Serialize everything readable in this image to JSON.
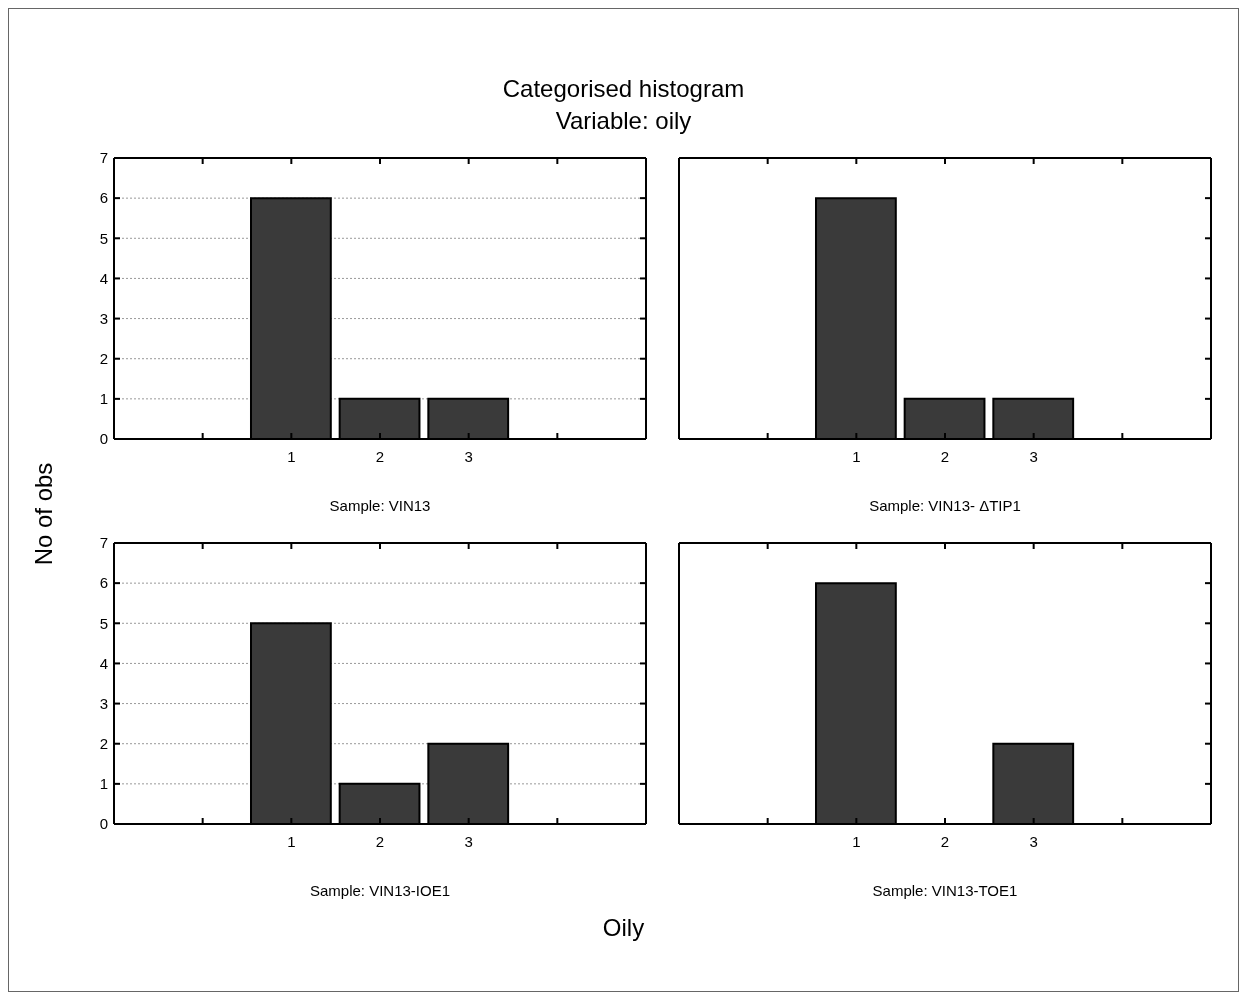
{
  "chart_data": [
    {
      "type": "histogram",
      "title": "Categorised histogram",
      "subtitle": "Variable: oily",
      "ylabel": "No of obs",
      "xlabel": "Sample: VIN13",
      "annotations": [
        "Oily"
      ],
      "bins": [
        0.5,
        1.5,
        2.5,
        3.5
      ],
      "values": [
        6,
        1,
        1
      ],
      "color": "#3a3a3a",
      "xlim": [
        -1,
        5
      ],
      "xticks": [
        {
          "value": -1,
          "label": null
        },
        {
          "value": 0,
          "label": null
        },
        1,
        2,
        3,
        {
          "value": 4,
          "label": null
        },
        {
          "value": 5,
          "label": null
        }
      ],
      "ylim": [
        0,
        7
      ],
      "yticks": [
        0,
        1,
        2,
        3,
        4,
        5,
        6,
        7
      ],
      "grid": "y"
    },
    {
      "type": "histogram",
      "xlabel": "Sample: VIN13- ΔTIP1",
      "bins": [
        0.5,
        1.5,
        2.5,
        3.5
      ],
      "values": [
        6,
        1,
        1
      ],
      "color": "#3a3a3a",
      "xlim": [
        -1,
        5
      ],
      "xticks": [
        {
          "value": -1,
          "label": null
        },
        {
          "value": 0,
          "label": null
        },
        1,
        2,
        3,
        {
          "value": 4,
          "label": null
        },
        {
          "value": 5,
          "label": null
        }
      ],
      "ylim": [
        0,
        7
      ],
      "yticks": [
        0,
        1,
        2,
        3,
        4,
        5,
        6,
        7
      ],
      "grid": "y",
      "tick_labels": "x"
    },
    {
      "type": "histogram",
      "xlabel": "Sample: VIN13-IOE1",
      "bins": [
        0.5,
        1.5,
        2.5,
        3.5
      ],
      "values": [
        5,
        1,
        2
      ],
      "color": "#3a3a3a",
      "xlim": [
        -1,
        5
      ],
      "xticks": [
        {
          "value": -1,
          "label": null
        },
        {
          "value": 0,
          "label": null
        },
        1,
        2,
        3,
        {
          "value": 4,
          "label": null
        },
        {
          "value": 5,
          "label": null
        }
      ],
      "ylim": [
        0,
        7
      ],
      "yticks": [
        0,
        1,
        2,
        3,
        4,
        5,
        6,
        7
      ],
      "grid": "y"
    },
    {
      "type": "histogram",
      "xlabel": "Sample: VIN13-TOE1",
      "bins": [
        0.5,
        1.5,
        2.5,
        3.5
      ],
      "values": [
        6,
        0,
        2
      ],
      "color": "#3a3a3a",
      "xlim": [
        -1,
        5
      ],
      "xticks": [
        {
          "value": -1,
          "label": null
        },
        {
          "value": 0,
          "label": null
        },
        1,
        2,
        3,
        {
          "value": 4,
          "label": null
        },
        {
          "value": 5,
          "label": null
        }
      ],
      "ylim": [
        0,
        7
      ],
      "yticks": [
        0,
        1,
        2,
        3,
        4,
        5,
        6,
        7
      ],
      "grid": "y",
      "tick_labels": "x"
    }
  ]
}
